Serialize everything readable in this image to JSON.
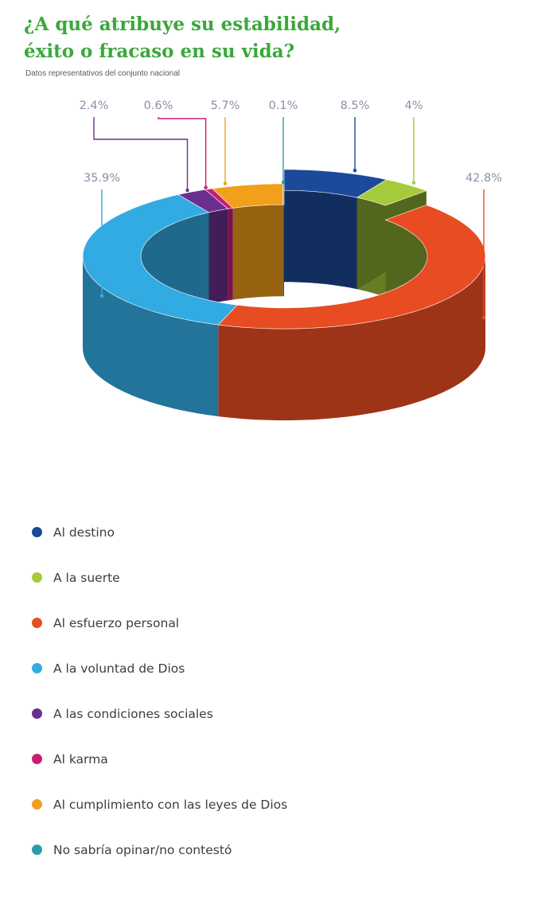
{
  "title_lines": [
    "¿A qué atribuye su estabilidad,",
    "éxito o fracaso en su vida?"
  ],
  "subtitle": "Datos representativos del conjunto nacional",
  "chart_data": {
    "type": "pie",
    "variant": "3d-donut",
    "title": "¿A qué atribuye su estabilidad, éxito o fracaso en su vida?",
    "subtitle": "Datos representativos del conjunto nacional",
    "legend_position": "bottom",
    "slices": [
      {
        "label": "Al destino",
        "value": 8.5,
        "value_text": "8.5%",
        "color": "#1b4a9a",
        "explode": true
      },
      {
        "label": "A la suerte",
        "value": 4,
        "value_text": "4%",
        "color": "#a5cb3a",
        "explode": true
      },
      {
        "label": "Al esfuerzo personal",
        "value": 42.8,
        "value_text": "42.8%",
        "color": "#e84c22"
      },
      {
        "label": "A la voluntad de Dios",
        "value": 35.9,
        "value_text": "35.9%",
        "color": "#32abe2"
      },
      {
        "label": "A las condiciones sociales",
        "value": 2.4,
        "value_text": "2.4%",
        "color": "#6a2f90"
      },
      {
        "label": "Al karma",
        "value": 0.6,
        "value_text": "0.6%",
        "color": "#c81d77"
      },
      {
        "label": "Al cumplimiento con las leyes de Dios",
        "value": 5.7,
        "value_text": "5.7%",
        "color": "#f29f1c"
      },
      {
        "label": "No sabría opinar/no contestó",
        "value": 0.1,
        "value_text": "0.1%",
        "color": "#2c9aa8"
      }
    ]
  }
}
